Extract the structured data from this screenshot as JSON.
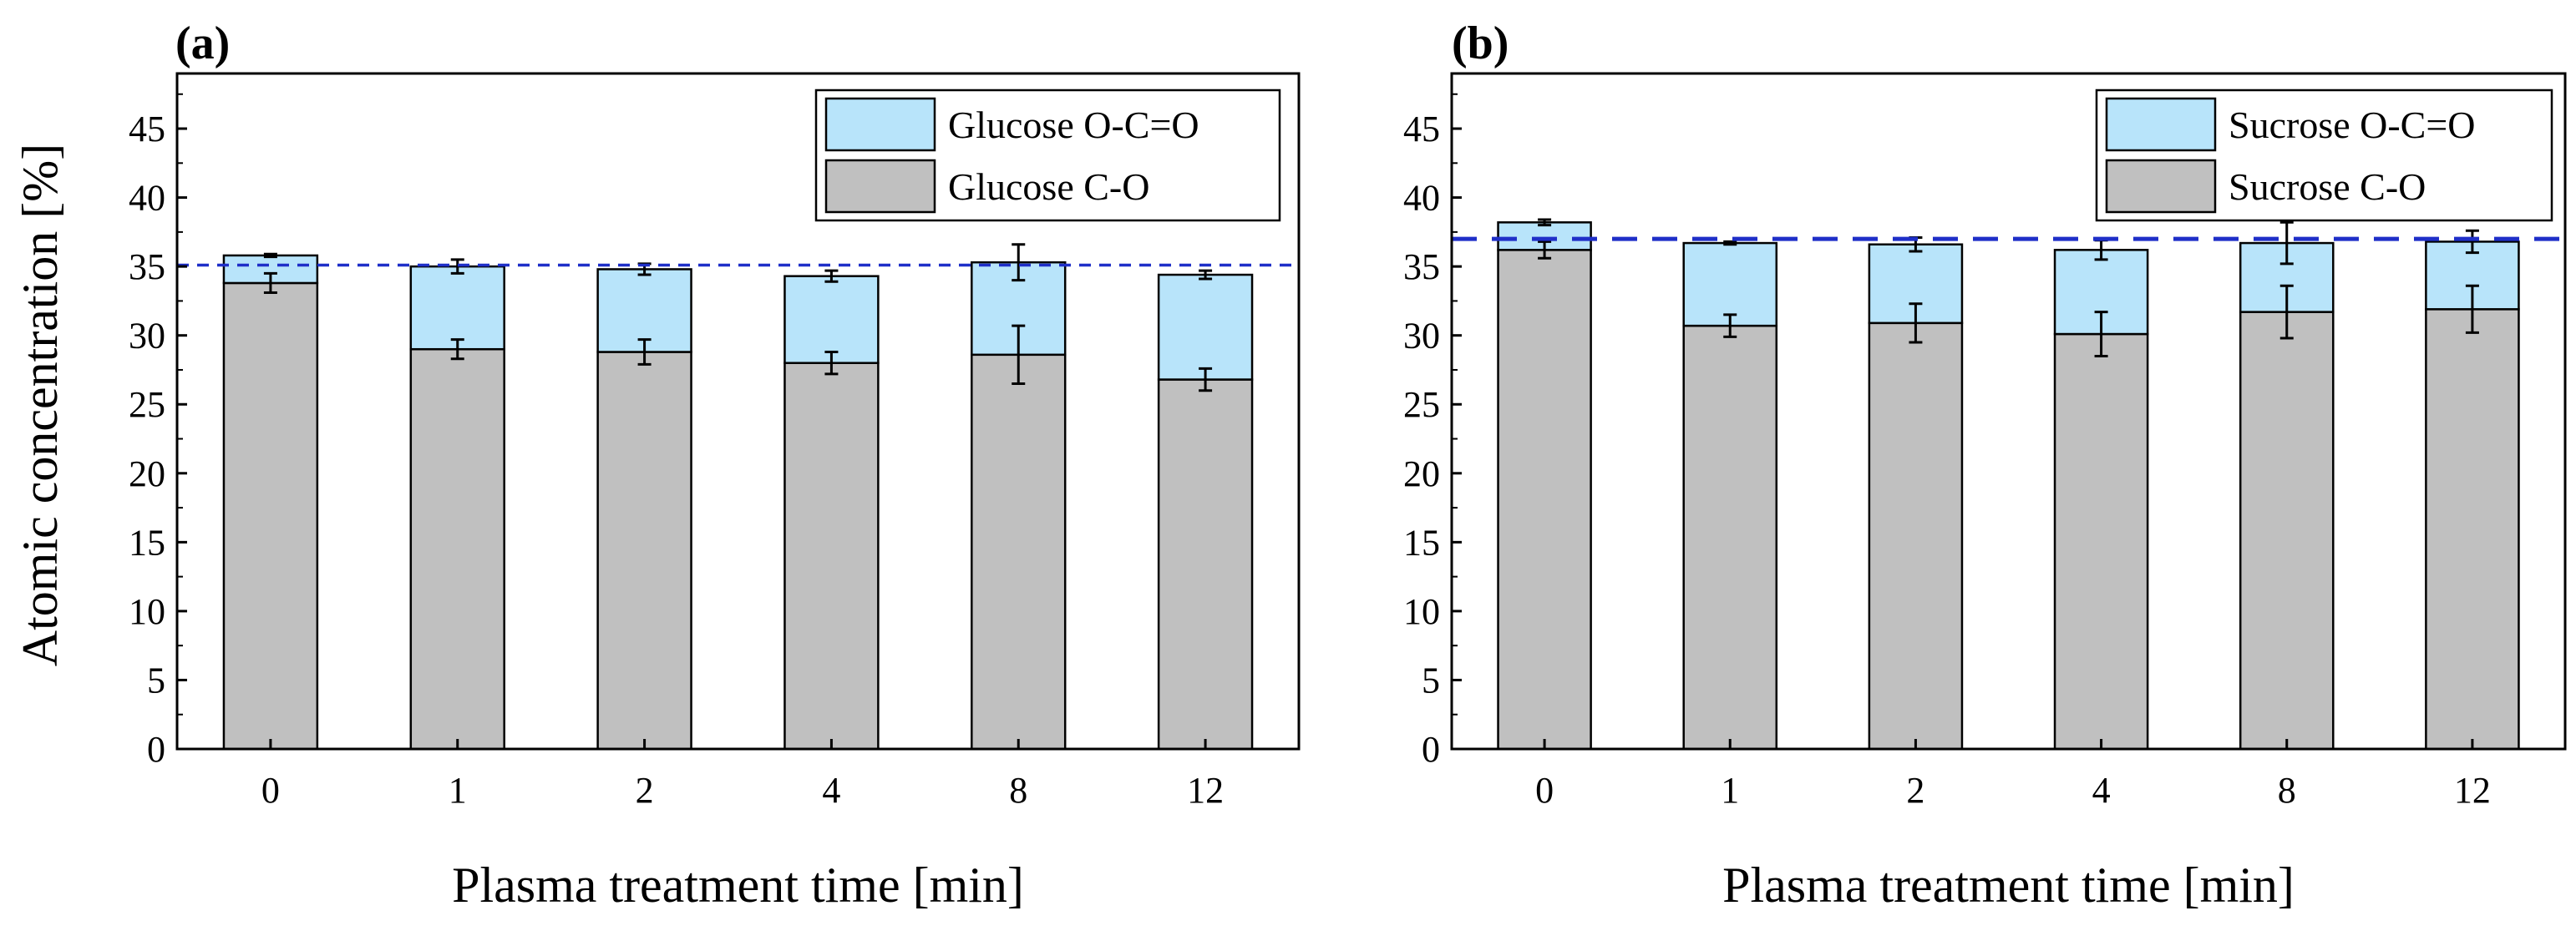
{
  "figure": {
    "ylabel": "Atomic concentration [%]",
    "colors": {
      "co": "#c0c0c0",
      "oco": "#b8e4fa",
      "ref_line": "#1f2fc8",
      "axis": "#000000"
    }
  },
  "chart_data": [
    {
      "type": "bar",
      "stacked": true,
      "panel_label": "(a)",
      "title": "",
      "xlabel": "Plasma treatment time [min]",
      "ylabel": "Atomic concentration [%]",
      "categories": [
        "0",
        "1",
        "2",
        "4",
        "8",
        "12"
      ],
      "ylim": [
        0,
        49
      ],
      "yticks": [
        0,
        5,
        10,
        15,
        20,
        25,
        30,
        35,
        40,
        45
      ],
      "reference_line": 35.1,
      "series": [
        {
          "name": "Glucose C-O",
          "values": [
            33.8,
            29.0,
            28.8,
            28.0,
            28.6,
            26.8
          ],
          "errors": [
            0.7,
            0.7,
            0.9,
            0.8,
            2.1,
            0.8
          ]
        },
        {
          "name": "Glucose O-C=O",
          "values": [
            2.0,
            6.0,
            6.0,
            6.3,
            6.7,
            7.6
          ],
          "errors": [
            0.1,
            0.5,
            0.4,
            0.4,
            1.3,
            0.3
          ]
        }
      ],
      "legend": [
        "Glucose O-C=O",
        "Glucose C-O"
      ],
      "legend_position": "top-right"
    },
    {
      "type": "bar",
      "stacked": true,
      "panel_label": "(b)",
      "title": "",
      "xlabel": "Plasma treatment time [min]",
      "ylabel": "",
      "categories": [
        "0",
        "1",
        "2",
        "4",
        "8",
        "12"
      ],
      "ylim": [
        0,
        49
      ],
      "yticks": [
        0,
        5,
        10,
        15,
        20,
        25,
        30,
        35,
        40,
        45
      ],
      "reference_line": 37.0,
      "series": [
        {
          "name": "Sucrose C-O",
          "values": [
            36.2,
            30.7,
            30.9,
            30.1,
            31.7,
            31.9
          ],
          "errors": [
            0.6,
            0.8,
            1.4,
            1.6,
            1.9,
            1.7
          ]
        },
        {
          "name": "Sucrose O-C=O",
          "values": [
            2.0,
            6.0,
            5.7,
            6.1,
            5.0,
            4.9
          ],
          "errors": [
            0.2,
            0.1,
            0.5,
            0.7,
            1.5,
            0.8
          ]
        }
      ],
      "legend": [
        "Sucrose O-C=O",
        "Sucrose C-O"
      ],
      "legend_position": "top-right"
    }
  ]
}
